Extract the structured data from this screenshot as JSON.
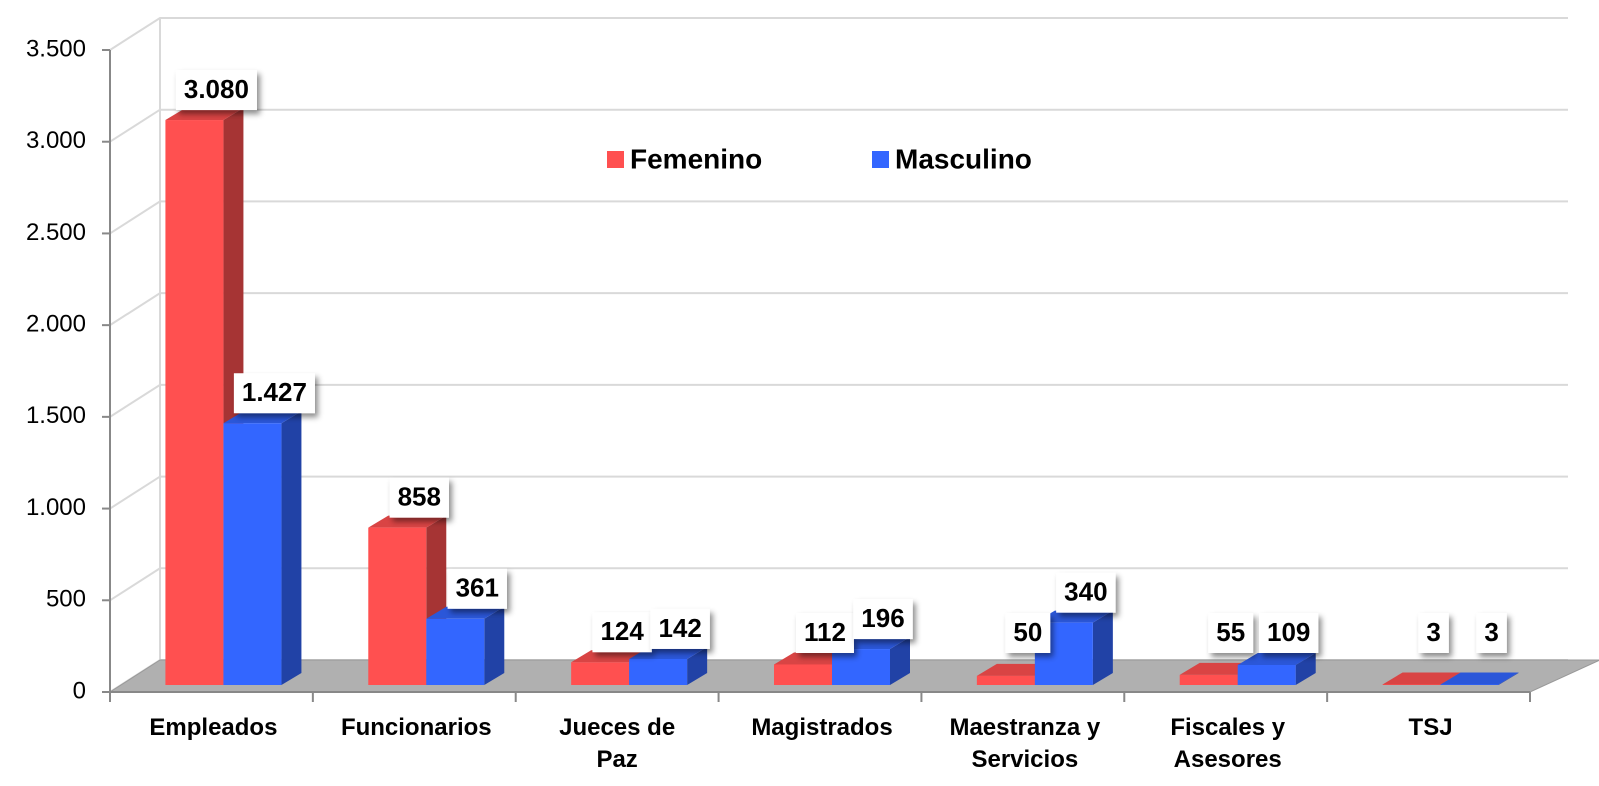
{
  "chart_data": {
    "type": "bar3d",
    "categories": [
      "Empleados",
      "Funcionarios",
      "Jueces de Paz",
      "Magistrados",
      "Maestranza y Servicios",
      "Fiscales y Asesores",
      "TSJ"
    ],
    "series": [
      {
        "name": "Femenino",
        "color": "#ff5050",
        "values": [
          3080,
          858,
          124,
          112,
          50,
          55,
          3
        ],
        "value_labels": [
          "3.080",
          "858",
          "124",
          "112",
          "50",
          "55",
          "3"
        ]
      },
      {
        "name": "Masculino",
        "color": "#3366ff",
        "values": [
          1427,
          361,
          142,
          196,
          340,
          109,
          3
        ],
        "value_labels": [
          "1.427",
          "361",
          "142",
          "196",
          "340",
          "109",
          "3"
        ]
      }
    ],
    "ylim": [
      0,
      3500
    ],
    "yticks": [
      0,
      500,
      {
        "value": 1000,
        "label": "1.000"
      },
      {
        "value": 1500,
        "label": "1.500"
      },
      {
        "value": 2000,
        "label": "2.000"
      },
      {
        "value": 2500,
        "label": "2.500"
      },
      {
        "value": 3000,
        "label": "3.000"
      },
      {
        "value": 3500,
        "label": "3.500"
      }
    ],
    "legend": "top",
    "grid": true
  }
}
